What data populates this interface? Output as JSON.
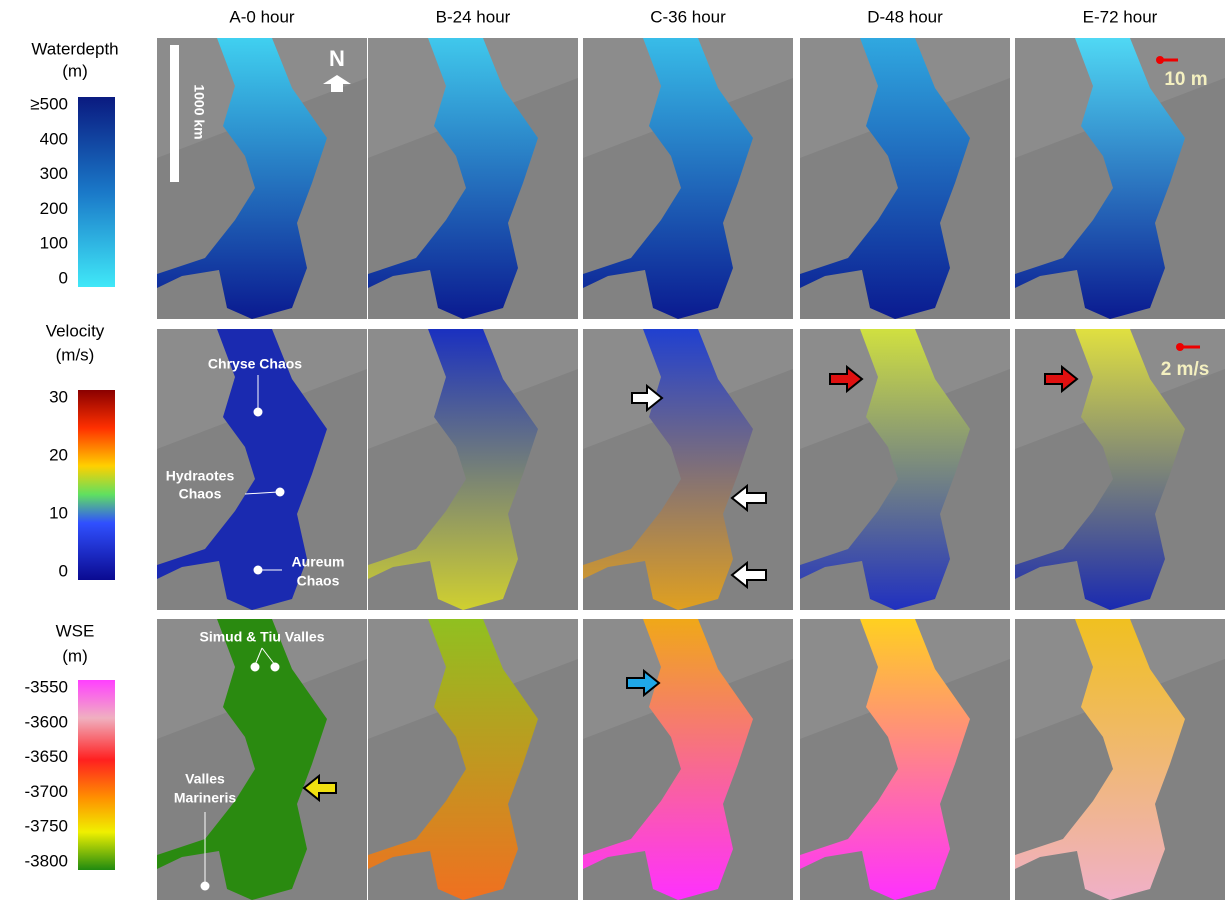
{
  "columns": [
    "A-0 hour",
    "B-24 hour",
    "C-36 hour",
    "D-48 hour",
    "E-72 hour"
  ],
  "legends": [
    {
      "title": [
        "Waterdepth",
        "(m)"
      ],
      "ticks": [
        "≥500",
        "400",
        "300",
        "200",
        "100",
        "0"
      ]
    },
    {
      "title": [
        "Velocity",
        "(m/s)"
      ],
      "ticks": [
        "30",
        "20",
        "10",
        "0"
      ]
    },
    {
      "title": [
        "WSE",
        "(m)"
      ],
      "ticks": [
        "-3550",
        "-3600",
        "-3650",
        "-3700",
        "-3750",
        "-3800"
      ]
    }
  ],
  "annotations": {
    "scale_bar": "1000 km",
    "north": "N",
    "depth_scale": "10 m",
    "velocity_scale": "2 m/s",
    "chryse": "Chryse Chaos",
    "hydraotes": [
      "Hydraotes",
      "Chaos"
    ],
    "aureum": [
      "Aureum",
      "Chaos"
    ],
    "simud": "Simud & Tiu Valles",
    "valles": [
      "Valles",
      "Marineris"
    ]
  }
}
